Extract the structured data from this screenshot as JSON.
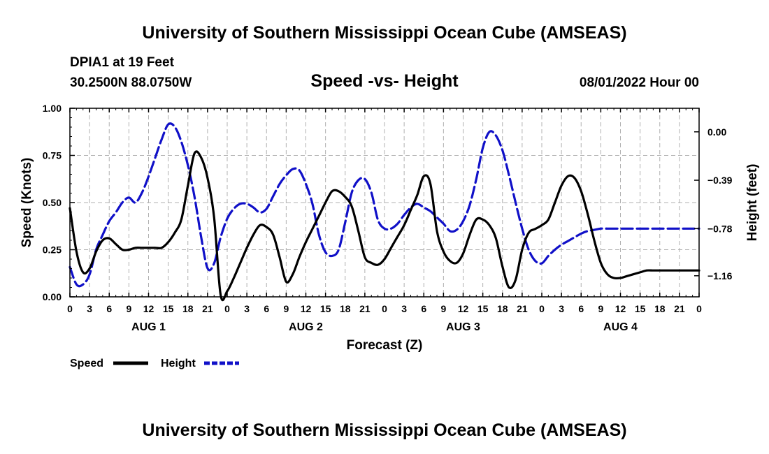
{
  "header": {
    "title_top": "University of Southern Mississippi Ocean Cube (AMSEAS)",
    "station": "DPIA1 at 19 Feet",
    "location": "30.2500N  88.0750W",
    "chart_title": "Speed -vs- Height",
    "datetime": "08/01/2022 Hour 00",
    "title_bottom": "University of Southern Mississippi Ocean Cube (AMSEAS)"
  },
  "legend": {
    "speed_label": "Speed",
    "height_label": "Height"
  },
  "colors": {
    "speed": "#000000",
    "height": "#1010c8",
    "grid": "#b0b0b0"
  },
  "chart_data": {
    "type": "line",
    "title": "Speed -vs- Height",
    "xlabel": "Forecast (Z)",
    "ylabel": "Speed (Knots)",
    "y2label": "Height (feet)",
    "xlim": [
      0,
      96
    ],
    "ylim": [
      0,
      1.0
    ],
    "y2lim": [
      -1.33,
      0.19
    ],
    "x_tick_labels": [
      "0",
      "3",
      "6",
      "9",
      "12",
      "15",
      "18",
      "21",
      "0",
      "3",
      "6",
      "9",
      "12",
      "15",
      "18",
      "21",
      "0",
      "3",
      "6",
      "9",
      "12",
      "15",
      "18",
      "21",
      "0",
      "3",
      "6",
      "9",
      "12",
      "15",
      "18",
      "21",
      "0"
    ],
    "y_ticks": [
      "0.00",
      "0.25",
      "0.50",
      "0.75",
      "1.00"
    ],
    "y2_ticks": [
      "0.00",
      "−0.39",
      "−0.78",
      "−1.16"
    ],
    "y2_tick_values": [
      0.0,
      -0.39,
      -0.78,
      -1.16
    ],
    "day_labels": [
      "AUG 1",
      "AUG 2",
      "AUG 3",
      "AUG 4"
    ],
    "series": [
      {
        "name": "Speed",
        "axis": "left",
        "x": [
          0,
          1,
          2,
          3,
          4,
          5,
          6,
          7,
          8,
          9,
          10,
          11,
          12,
          13,
          14,
          15,
          16,
          17,
          18,
          19,
          20,
          21,
          22,
          23,
          24,
          25,
          26,
          27,
          28,
          29,
          30,
          31,
          32,
          33,
          34,
          35,
          36,
          37,
          38,
          39,
          40,
          41,
          42,
          43,
          44,
          45,
          46,
          47,
          48,
          49,
          50,
          51,
          52,
          53,
          54,
          55,
          56,
          57,
          58,
          59,
          60,
          61,
          62,
          63,
          64,
          65,
          66,
          67,
          68,
          69,
          70,
          71,
          72,
          73,
          74,
          75,
          76,
          77,
          78,
          79,
          80,
          81,
          82,
          83,
          84,
          85,
          86,
          87,
          88,
          89,
          90,
          91,
          92,
          93,
          94,
          95,
          96
        ],
        "values": [
          0.47,
          0.24,
          0.13,
          0.15,
          0.24,
          0.3,
          0.31,
          0.28,
          0.25,
          0.25,
          0.26,
          0.26,
          0.26,
          0.26,
          0.26,
          0.29,
          0.34,
          0.41,
          0.59,
          0.76,
          0.74,
          0.63,
          0.42,
          0.01,
          0.03,
          0.1,
          0.18,
          0.26,
          0.33,
          0.38,
          0.37,
          0.33,
          0.21,
          0.08,
          0.12,
          0.21,
          0.29,
          0.36,
          0.43,
          0.5,
          0.56,
          0.56,
          0.53,
          0.48,
          0.35,
          0.21,
          0.18,
          0.17,
          0.2,
          0.26,
          0.32,
          0.38,
          0.46,
          0.54,
          0.64,
          0.6,
          0.35,
          0.24,
          0.19,
          0.18,
          0.23,
          0.33,
          0.41,
          0.41,
          0.38,
          0.31,
          0.16,
          0.05,
          0.09,
          0.25,
          0.34,
          0.36,
          0.38,
          0.41,
          0.5,
          0.59,
          0.64,
          0.63,
          0.56,
          0.44,
          0.3,
          0.18,
          0.12,
          0.1,
          0.1,
          0.11,
          0.12,
          0.13,
          0.14,
          0.14,
          0.14,
          0.14,
          0.14,
          0.14,
          0.14,
          0.14,
          0.14
        ]
      },
      {
        "name": "Height",
        "axis": "right",
        "x": [
          0,
          1,
          2,
          3,
          4,
          5,
          6,
          7,
          8,
          9,
          10,
          11,
          12,
          13,
          14,
          15,
          16,
          17,
          18,
          19,
          20,
          21,
          22,
          23,
          24,
          25,
          26,
          27,
          28,
          29,
          30,
          31,
          32,
          33,
          34,
          35,
          36,
          37,
          38,
          39,
          40,
          41,
          42,
          43,
          44,
          45,
          46,
          47,
          48,
          49,
          50,
          51,
          52,
          53,
          54,
          55,
          56,
          57,
          58,
          59,
          60,
          61,
          62,
          63,
          64,
          65,
          66,
          67,
          68,
          69,
          70,
          71,
          72,
          73,
          74,
          75,
          76,
          77,
          78,
          79,
          80,
          81,
          82,
          83,
          84,
          85,
          86,
          87,
          88,
          89,
          90,
          91,
          92,
          93,
          94,
          95,
          96
        ],
        "values": [
          -1.09,
          -1.23,
          -1.23,
          -1.15,
          -0.95,
          -0.83,
          -0.72,
          -0.65,
          -0.57,
          -0.53,
          -0.57,
          -0.49,
          -0.36,
          -0.21,
          -0.06,
          0.06,
          0.04,
          -0.08,
          -0.27,
          -0.52,
          -0.84,
          -1.1,
          -1.06,
          -0.85,
          -0.7,
          -0.62,
          -0.58,
          -0.58,
          -0.61,
          -0.65,
          -0.62,
          -0.52,
          -0.42,
          -0.35,
          -0.3,
          -0.31,
          -0.42,
          -0.58,
          -0.83,
          -0.97,
          -1.0,
          -0.95,
          -0.73,
          -0.49,
          -0.39,
          -0.38,
          -0.49,
          -0.71,
          -0.78,
          -0.78,
          -0.74,
          -0.67,
          -0.61,
          -0.58,
          -0.61,
          -0.64,
          -0.69,
          -0.74,
          -0.8,
          -0.79,
          -0.72,
          -0.59,
          -0.38,
          -0.13,
          0.0,
          -0.03,
          -0.15,
          -0.35,
          -0.57,
          -0.78,
          -0.95,
          -1.04,
          -1.06,
          -1.0,
          -0.95,
          -0.91,
          -0.88,
          -0.85,
          -0.82,
          -0.8,
          -0.79,
          -0.78,
          -0.78,
          -0.78,
          -0.78,
          -0.78,
          -0.78,
          -0.78,
          -0.78,
          -0.78,
          -0.78,
          -0.78,
          -0.78,
          -0.78,
          -0.78,
          -0.78,
          -0.78
        ]
      }
    ]
  }
}
